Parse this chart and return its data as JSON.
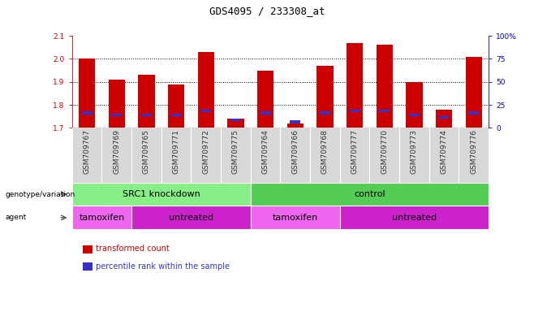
{
  "title": "GDS4095 / 233308_at",
  "samples": [
    "GSM709767",
    "GSM709769",
    "GSM709765",
    "GSM709771",
    "GSM709772",
    "GSM709775",
    "GSM709764",
    "GSM709766",
    "GSM709768",
    "GSM709777",
    "GSM709770",
    "GSM709773",
    "GSM709774",
    "GSM709776"
  ],
  "red_values": [
    2.0,
    1.91,
    1.93,
    1.89,
    2.03,
    1.74,
    1.95,
    1.72,
    1.97,
    2.07,
    2.06,
    1.9,
    1.78,
    2.01
  ],
  "blue_values": [
    1.765,
    1.755,
    1.755,
    1.755,
    1.775,
    1.735,
    1.765,
    1.725,
    1.765,
    1.775,
    1.775,
    1.755,
    1.745,
    1.765
  ],
  "blue_heights": [
    0.012,
    0.01,
    0.01,
    0.01,
    0.012,
    0.01,
    0.012,
    0.014,
    0.012,
    0.012,
    0.012,
    0.01,
    0.01,
    0.012
  ],
  "ymin": 1.7,
  "ymax": 2.1,
  "yticks_left": [
    1.7,
    1.8,
    1.9,
    2.0,
    2.1
  ],
  "yticks_right_vals": [
    0,
    25,
    50,
    75,
    100
  ],
  "yticks_right_pos": [
    1.7,
    1.8,
    1.9,
    2.0,
    2.1
  ],
  "bar_color": "#cc0000",
  "blue_color": "#3333cc",
  "bg_color": "#ffffff",
  "title_color": "#000000",
  "left_tick_color": "#cc0000",
  "right_axis_color": "#0000bb",
  "xtick_bg_color": "#d8d8d8",
  "genotype_groups": [
    {
      "label": "SRC1 knockdown",
      "start": 0,
      "end": 6,
      "color": "#88ee88"
    },
    {
      "label": "control",
      "start": 6,
      "end": 14,
      "color": "#55cc55"
    }
  ],
  "agent_groups": [
    {
      "label": "tamoxifen",
      "start": 0,
      "end": 2,
      "color": "#ee66ee"
    },
    {
      "label": "untreated",
      "start": 2,
      "end": 6,
      "color": "#cc22cc"
    },
    {
      "label": "tamoxifen",
      "start": 6,
      "end": 9,
      "color": "#ee66ee"
    },
    {
      "label": "untreated",
      "start": 9,
      "end": 14,
      "color": "#cc22cc"
    }
  ],
  "legend_items": [
    {
      "label": "transformed count",
      "color": "#cc0000"
    },
    {
      "label": "percentile rank within the sample",
      "color": "#3333cc"
    }
  ],
  "bar_width": 0.55,
  "blue_bar_width": 0.35,
  "tick_fontsize": 6.5,
  "title_fontsize": 9,
  "annot_fontsize": 8,
  "legend_fontsize": 7
}
